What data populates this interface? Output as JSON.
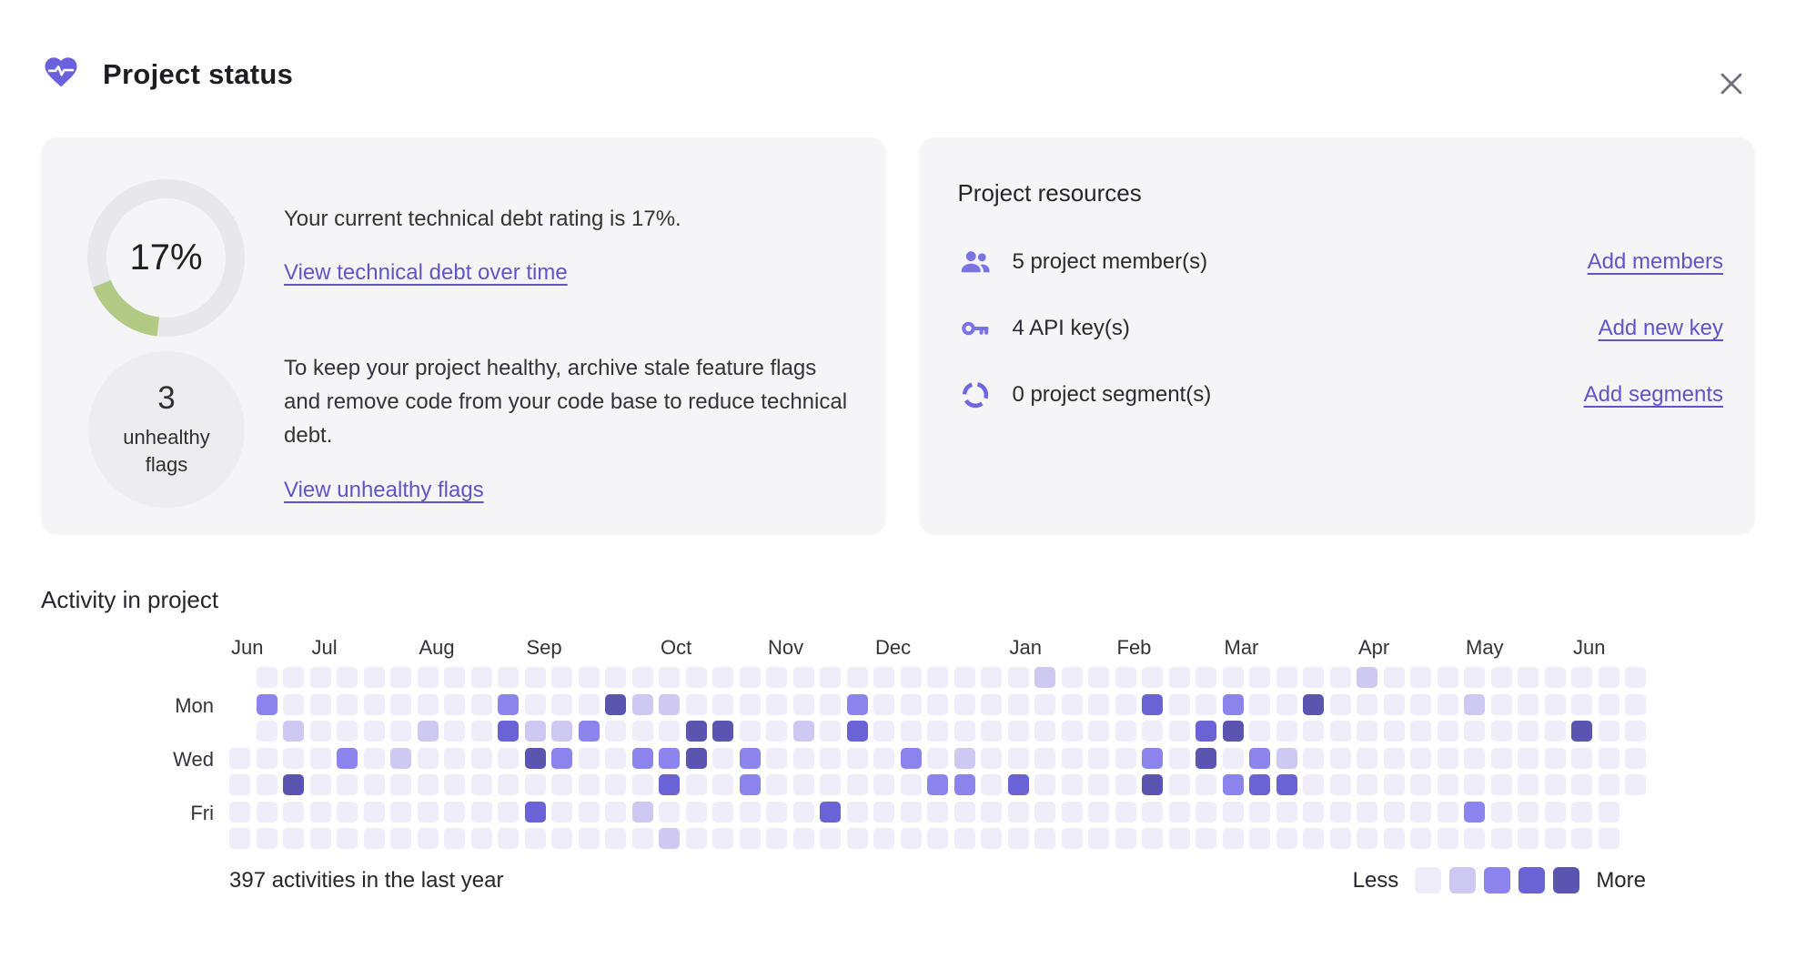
{
  "header": {
    "title": "Project status"
  },
  "close_label": "Close",
  "debt_card": {
    "percent": 17,
    "rating_display": "17%",
    "rating_text": "Your current technical debt rating is 17%.",
    "debt_link": "View technical debt over time",
    "unhealthy_count": "3",
    "unhealthy_line1": "unhealthy",
    "unhealthy_line2": "flags",
    "health_text": "To keep your project healthy, archive stale feature flags and remove code from your code base to reduce technical debt.",
    "unhealthy_link": "View unhealthy flags",
    "donut_track_color": "#e8e7eb",
    "donut_fill_color": "#b3ca85"
  },
  "resources_card": {
    "title": "Project resources",
    "icon_color": "#7b72e6",
    "rows": [
      {
        "icon": "members-icon",
        "label": "5 project member(s)",
        "link": "Add members"
      },
      {
        "icon": "key-icon",
        "label": "4 API key(s)",
        "link": "Add new key"
      },
      {
        "icon": "segments-icon",
        "label": "0 project segment(s)",
        "link": "Add segments"
      }
    ]
  },
  "activity": {
    "title": "Activity in project",
    "summary": "397 activities in the last year",
    "legend_less": "Less",
    "legend_more": "More",
    "colors": [
      "#efedfa",
      "#cdc9f2",
      "#8a84ec",
      "#6a63d6",
      "#5b55b2"
    ],
    "months": [
      {
        "label": "Jun",
        "col": 0
      },
      {
        "label": "Jul",
        "col": 3
      },
      {
        "label": "Aug",
        "col": 7
      },
      {
        "label": "Sep",
        "col": 11
      },
      {
        "label": "Oct",
        "col": 16
      },
      {
        "label": "Nov",
        "col": 20
      },
      {
        "label": "Dec",
        "col": 24
      },
      {
        "label": "Jan",
        "col": 29
      },
      {
        "label": "Feb",
        "col": 33
      },
      {
        "label": "Mar",
        "col": 37
      },
      {
        "label": "Apr",
        "col": 42
      },
      {
        "label": "May",
        "col": 46
      },
      {
        "label": "Jun",
        "col": 50
      }
    ],
    "day_labels": [
      {
        "label": "Mon",
        "row": 1
      },
      {
        "label": "Wed",
        "row": 3
      },
      {
        "label": "Fri",
        "row": 5
      }
    ],
    "grid": [
      [
        null,
        null,
        null,
        0,
        0,
        0,
        0
      ],
      [
        0,
        2,
        0,
        0,
        0,
        0,
        0
      ],
      [
        0,
        0,
        1,
        0,
        4,
        0,
        0
      ],
      [
        0,
        0,
        0,
        0,
        0,
        0,
        0
      ],
      [
        0,
        0,
        0,
        2,
        0,
        0,
        0
      ],
      [
        0,
        0,
        0,
        0,
        0,
        0,
        0
      ],
      [
        0,
        0,
        0,
        1,
        0,
        0,
        0
      ],
      [
        0,
        0,
        1,
        0,
        0,
        0,
        0
      ],
      [
        0,
        0,
        0,
        0,
        0,
        0,
        0
      ],
      [
        0,
        0,
        0,
        0,
        0,
        0,
        0
      ],
      [
        0,
        2,
        3,
        0,
        0,
        0,
        0
      ],
      [
        0,
        0,
        1,
        4,
        0,
        3,
        0
      ],
      [
        0,
        0,
        1,
        2,
        0,
        0,
        0
      ],
      [
        0,
        0,
        2,
        0,
        0,
        0,
        0
      ],
      [
        0,
        4,
        0,
        0,
        0,
        0,
        0
      ],
      [
        0,
        1,
        0,
        2,
        0,
        1,
        0
      ],
      [
        0,
        1,
        0,
        2,
        3,
        0,
        1
      ],
      [
        0,
        0,
        4,
        4,
        0,
        0,
        0
      ],
      [
        0,
        0,
        4,
        0,
        0,
        0,
        0
      ],
      [
        0,
        0,
        0,
        2,
        2,
        0,
        0
      ],
      [
        0,
        0,
        0,
        0,
        0,
        0,
        0
      ],
      [
        0,
        0,
        1,
        0,
        0,
        0,
        0
      ],
      [
        0,
        0,
        0,
        0,
        0,
        3,
        0
      ],
      [
        0,
        2,
        3,
        0,
        0,
        0,
        0
      ],
      [
        0,
        0,
        0,
        0,
        0,
        0,
        0
      ],
      [
        0,
        0,
        0,
        2,
        0,
        0,
        0
      ],
      [
        0,
        0,
        0,
        0,
        2,
        0,
        0
      ],
      [
        0,
        0,
        0,
        1,
        2,
        0,
        0
      ],
      [
        0,
        0,
        0,
        0,
        0,
        0,
        0
      ],
      [
        0,
        0,
        0,
        0,
        3,
        0,
        0
      ],
      [
        1,
        0,
        0,
        0,
        0,
        0,
        0
      ],
      [
        0,
        0,
        0,
        0,
        0,
        0,
        0
      ],
      [
        0,
        0,
        0,
        0,
        0,
        0,
        0
      ],
      [
        0,
        0,
        0,
        0,
        0,
        0,
        0
      ],
      [
        0,
        3,
        0,
        2,
        4,
        0,
        0
      ],
      [
        0,
        0,
        0,
        0,
        0,
        0,
        0
      ],
      [
        0,
        0,
        3,
        4,
        0,
        0,
        0
      ],
      [
        0,
        2,
        4,
        0,
        2,
        0,
        0
      ],
      [
        0,
        0,
        0,
        2,
        3,
        0,
        0
      ],
      [
        0,
        0,
        0,
        1,
        3,
        0,
        0
      ],
      [
        0,
        4,
        0,
        0,
        0,
        0,
        0
      ],
      [
        0,
        0,
        0,
        0,
        0,
        0,
        0
      ],
      [
        1,
        0,
        0,
        0,
        0,
        0,
        0
      ],
      [
        0,
        0,
        0,
        0,
        0,
        0,
        0
      ],
      [
        0,
        0,
        0,
        0,
        0,
        0,
        0
      ],
      [
        0,
        0,
        0,
        0,
        0,
        0,
        0
      ],
      [
        0,
        1,
        0,
        0,
        0,
        2,
        0
      ],
      [
        0,
        0,
        0,
        0,
        0,
        0,
        0
      ],
      [
        0,
        0,
        0,
        0,
        0,
        0,
        0
      ],
      [
        0,
        0,
        0,
        0,
        0,
        0,
        0
      ],
      [
        0,
        0,
        4,
        0,
        0,
        0,
        0
      ],
      [
        0,
        0,
        0,
        0,
        0,
        0,
        0
      ],
      [
        0,
        0,
        0,
        0,
        0,
        null,
        null
      ]
    ]
  }
}
